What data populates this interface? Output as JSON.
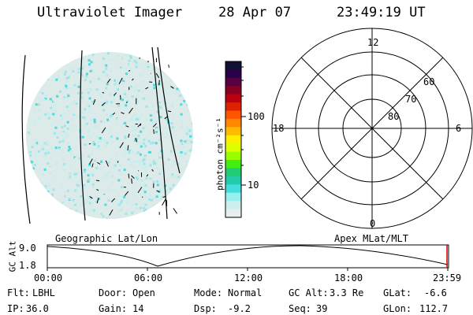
{
  "header": {
    "instrument": "Ultraviolet Imager",
    "date": "28 Apr 07",
    "time": "23:49:19 UT"
  },
  "colorbar": {
    "unit_label": "photon cm⁻²s⁻¹",
    "ticks": [
      "100",
      "10"
    ],
    "colors": [
      "#111133",
      "#2a004a",
      "#5a0040",
      "#8a0020",
      "#bb0010",
      "#dd2200",
      "#ff5500",
      "#ff8800",
      "#ffbb00",
      "#ffee00",
      "#ddff00",
      "#99ff00",
      "#44ee11",
      "#22cc77",
      "#22ccaa",
      "#44dddd",
      "#99eeee",
      "#cceeee",
      "#e6eeee"
    ]
  },
  "polar_plot": {
    "mlt_labels": [
      "12",
      "18",
      "6",
      "0"
    ],
    "lat_labels": [
      "60",
      "70",
      "80"
    ],
    "caption": "Apex MLat/MLT"
  },
  "geo_image": {
    "caption": "Geographic Lat/Lon",
    "colors": [
      "#dcebea",
      "#c9ecec",
      "#9fe6e6",
      "#4dd9d9"
    ]
  },
  "altitude_plot": {
    "ylabel": "GC Alt",
    "yticks": [
      "9.0",
      "1.8"
    ],
    "xticks": [
      "00:00",
      "06:00",
      "12:00",
      "18:00",
      "23:59"
    ]
  },
  "info": {
    "row1": [
      {
        "label": "Flt:",
        "value": "LBHL"
      },
      {
        "label": "Door:",
        "value": "Open"
      },
      {
        "label": "Mode:",
        "value": "Normal"
      },
      {
        "label": "GC Alt:",
        "value": "3.3 Re"
      },
      {
        "label": "GLat:",
        "value": "-6.6"
      }
    ],
    "row2": [
      {
        "label": "IP:",
        "value": "36.0"
      },
      {
        "label": "Gain:",
        "value": "14"
      },
      {
        "label": "Dsp:",
        "value": "-9.2"
      },
      {
        "label": "Seq:",
        "value": "39"
      },
      {
        "label": "GLon:",
        "value": "112.7"
      }
    ]
  }
}
